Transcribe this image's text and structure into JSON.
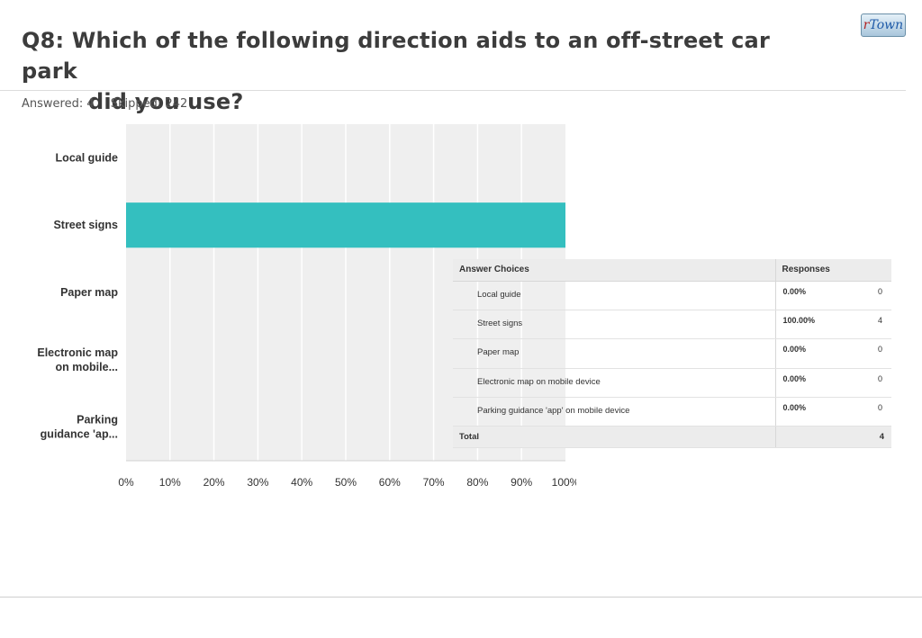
{
  "header": {
    "title_line1": "Q8: Which of the following direction aids to an off-street car park",
    "title_line2": "did you use?",
    "logo_r": "r",
    "logo_rest": "Town"
  },
  "meta": {
    "answered": "Answered: 4",
    "skipped": "Skipped: 242"
  },
  "colors": {
    "bar": "#34bfbf",
    "plot_bg": "#efefef",
    "gridline": "#ffffff"
  },
  "chart_data": {
    "type": "bar",
    "orientation": "horizontal",
    "categories": [
      "Local guide",
      "Street signs",
      "Paper map",
      "Electronic map on mobile...",
      "Parking guidance 'ap..."
    ],
    "category_lines": [
      [
        "Local guide"
      ],
      [
        "Street signs"
      ],
      [
        "Paper map"
      ],
      [
        "Electronic map",
        "on mobile..."
      ],
      [
        "Parking",
        "guidance 'ap..."
      ]
    ],
    "values": [
      0,
      100,
      0,
      0,
      0
    ],
    "xlim": [
      0,
      100
    ],
    "xticks": [
      "0%",
      "10%",
      "20%",
      "30%",
      "40%",
      "50%",
      "60%",
      "70%",
      "80%",
      "90%",
      "100%"
    ],
    "grid": true
  },
  "table": {
    "header_choices": "Answer Choices",
    "header_responses": "Responses",
    "rows": [
      {
        "choice": "Local guide",
        "percent": "0.00%",
        "count": "0"
      },
      {
        "choice": "Street signs",
        "percent": "100.00%",
        "count": "4"
      },
      {
        "choice": "Paper map",
        "percent": "0.00%",
        "count": "0"
      },
      {
        "choice": "Electronic map on mobile device",
        "percent": "0.00%",
        "count": "0"
      },
      {
        "choice": "Parking guidance 'app' on mobile device",
        "percent": "0.00%",
        "count": "0"
      }
    ],
    "total_label": "Total",
    "total_count": "4"
  }
}
